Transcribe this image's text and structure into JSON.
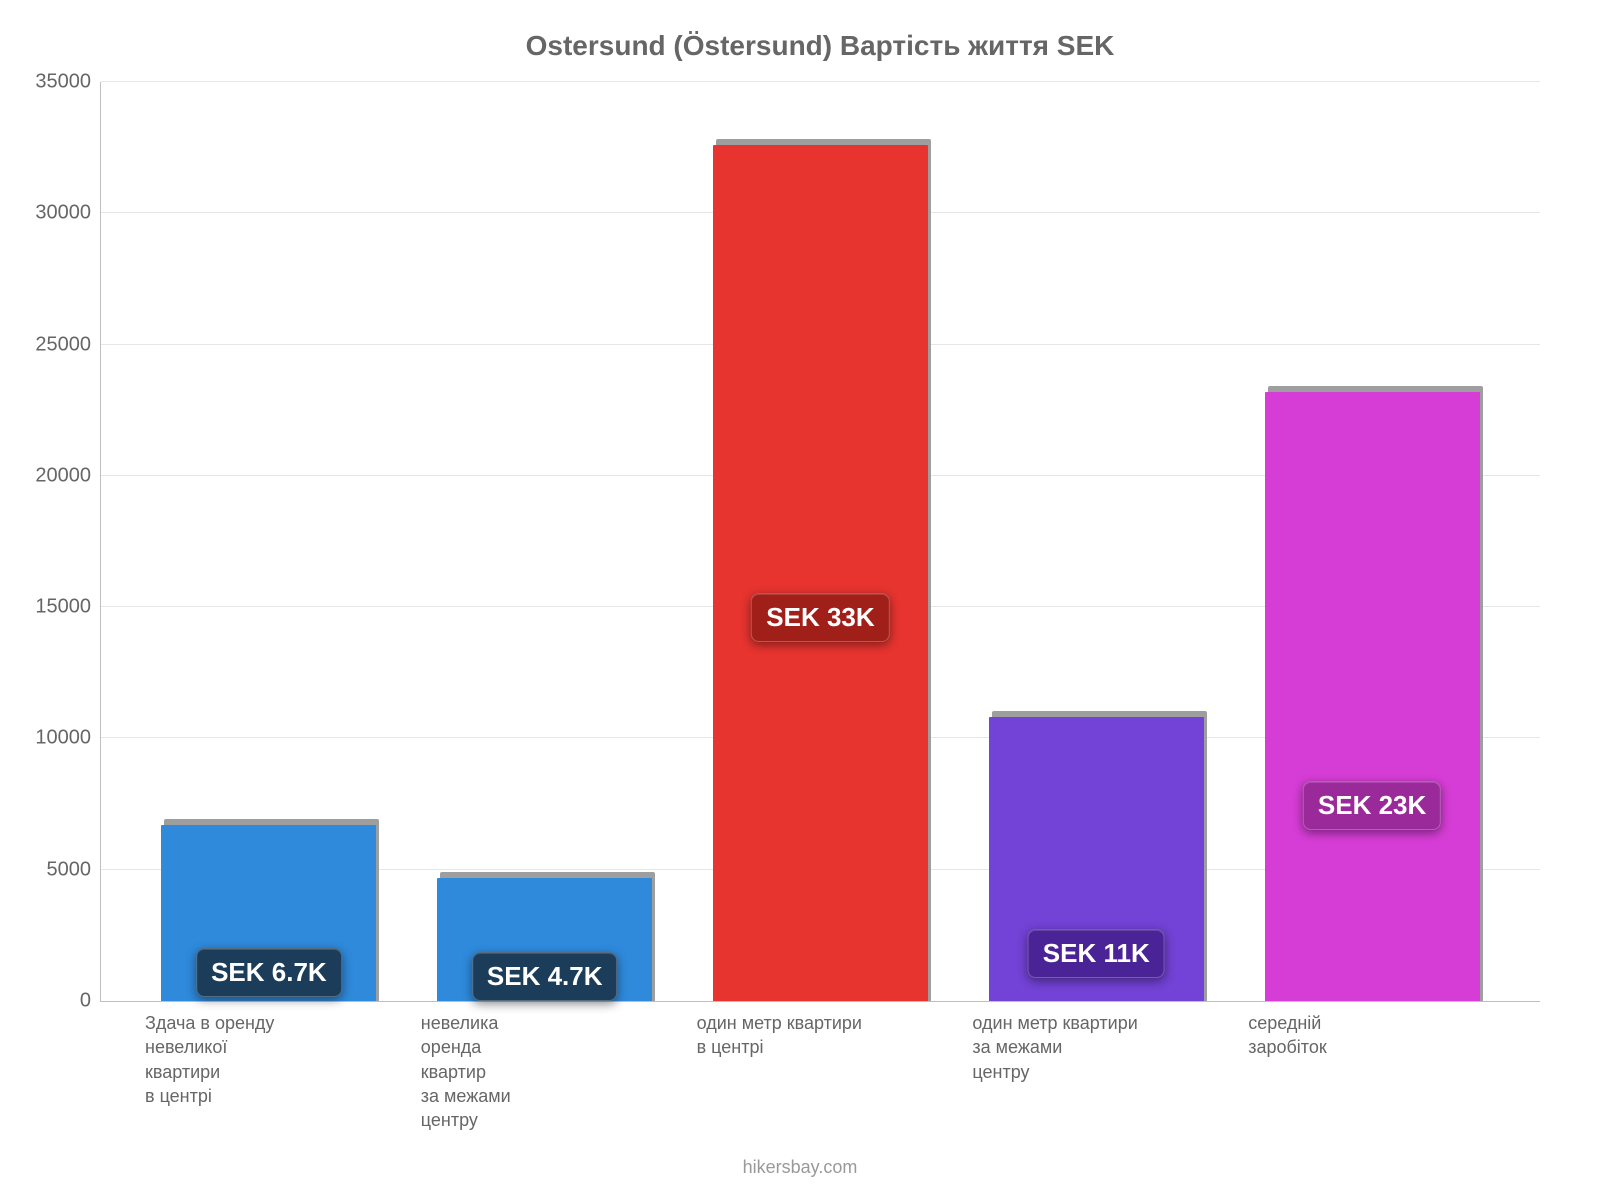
{
  "chart": {
    "type": "bar",
    "title": "Ostersund (Östersund) Вартість життя SEK",
    "title_fontsize": 28,
    "title_color": "#666666",
    "background_color": "#ffffff",
    "grid_color": "#e6e6e6",
    "axis_color": "#bfbfbf",
    "xlabel_color": "#666666",
    "ylabel_fontsize": 20,
    "xlabel_fontsize": 18,
    "ylim": [
      0,
      35000
    ],
    "ytick_step": 5000,
    "yticks": [
      "0",
      "5000",
      "10000",
      "15000",
      "20000",
      "25000",
      "30000",
      "35000"
    ],
    "bar_width": 0.78,
    "shadow_color": "#9e9e9e",
    "label_fontsize": 26,
    "source": "hikersbay.com",
    "source_color": "#999999",
    "source_fontsize": 18,
    "categories": [
      "Здача в оренду\nневеликої\nквартири\nв центрі",
      "невелика\nоренда\nквартир\nза межами\nцентру",
      "один метр квартири\nв центрі",
      "один метр квартири\nза межами\nцентру",
      "середній\nзаробіток"
    ],
    "bars": [
      {
        "value": 6700,
        "label": "SEK 6.7K",
        "color": "#2f8adc",
        "badge_bg": "#1c3d5a",
        "label_offset_pct": 2
      },
      {
        "value": 4700,
        "label": "SEK 4.7K",
        "color": "#2f8adc",
        "badge_bg": "#1c3d5a",
        "label_offset_pct": 0
      },
      {
        "value": 32600,
        "label": "SEK 33K",
        "color": "#e8342f",
        "badge_bg": "#a01f19",
        "label_offset_pct": 42
      },
      {
        "value": 10800,
        "label": "SEK 11K",
        "color": "#7342d6",
        "badge_bg": "#4a2396",
        "label_offset_pct": 8
      },
      {
        "value": 23200,
        "label": "SEK 23K",
        "color": "#d63dd6",
        "badge_bg": "#9a2a9a",
        "label_offset_pct": 28
      }
    ]
  }
}
